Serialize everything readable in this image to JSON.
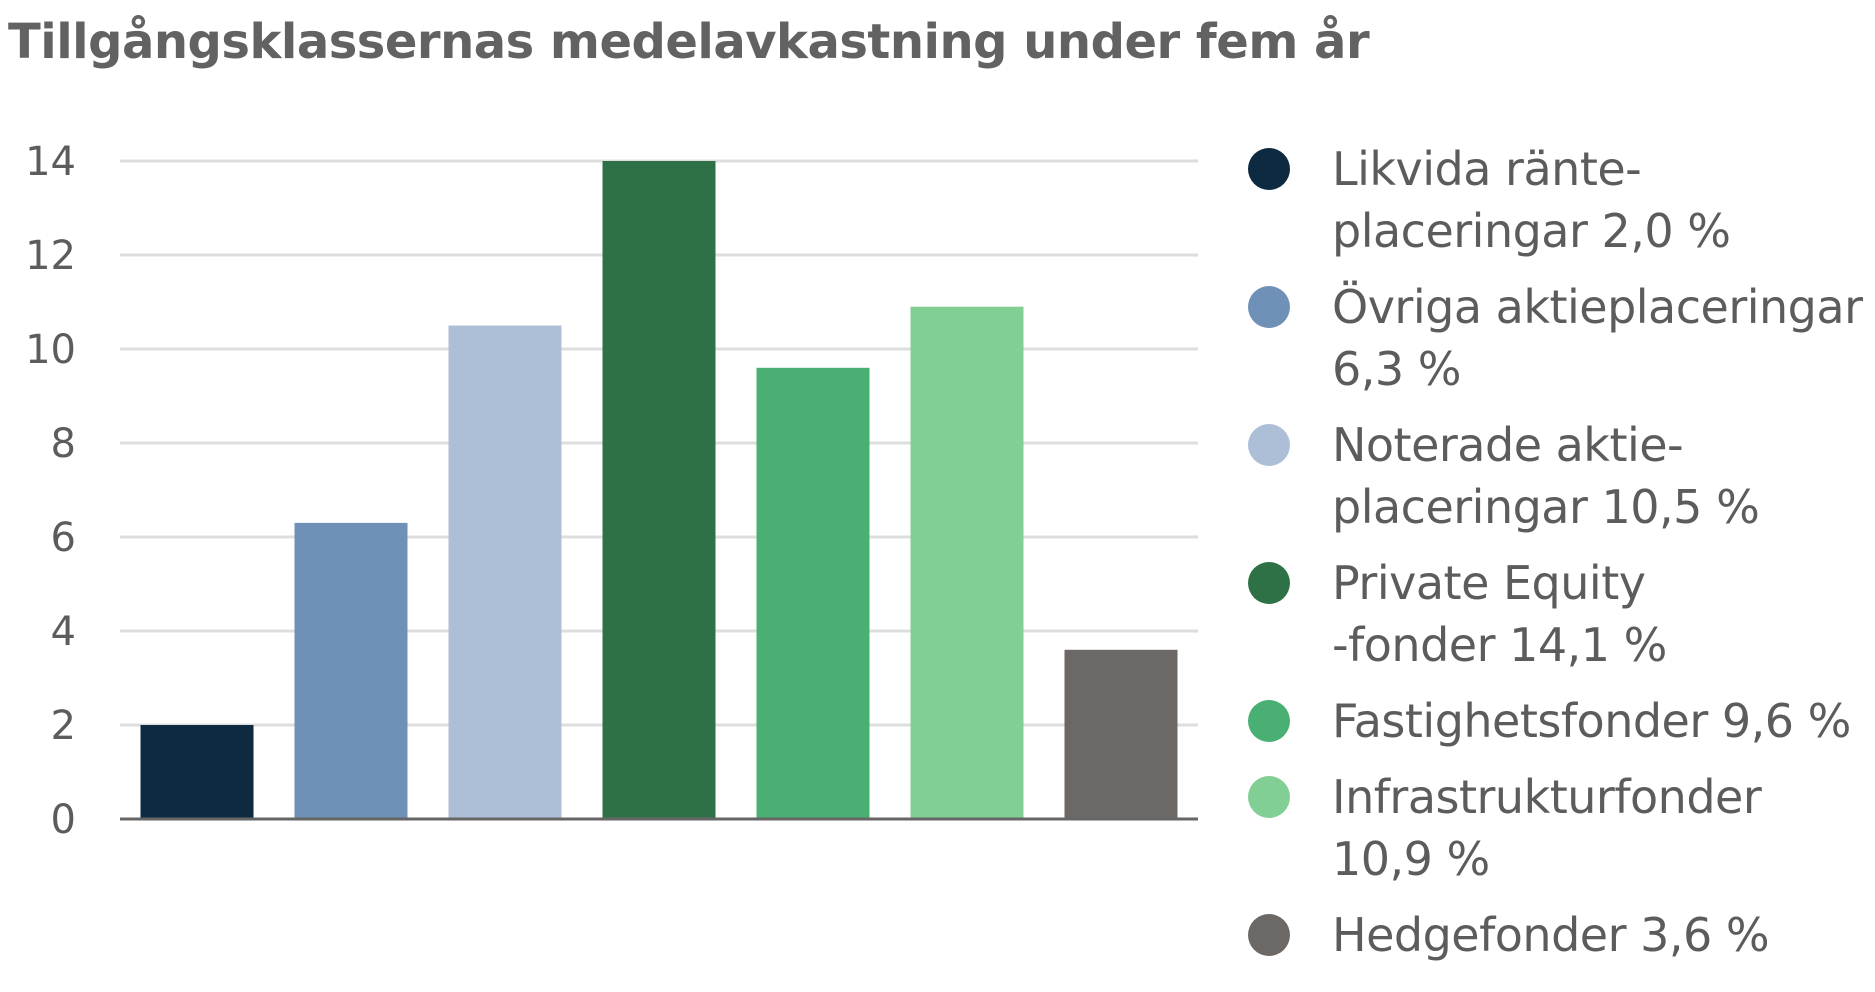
{
  "chart_data": {
    "type": "bar",
    "title": "Tillgångsklassernas medelavkastning under fem år",
    "xlabel": "",
    "ylabel": "",
    "ylim": [
      0,
      14
    ],
    "yticks": [
      0,
      2,
      4,
      6,
      8,
      10,
      12,
      14
    ],
    "grid": true,
    "legend_position": "right",
    "categories": [
      "Likvida ränte-\nplaceringar 2,0 %",
      "Övriga aktieplaceringar\n6,3 %",
      "Noterade aktie-\nplaceringar 10,5 %",
      "Private Equity\n-fonder 14,1 %",
      "Fastighetsfonder 9,6 %",
      "Infrastrukturfonder\n10,9 %",
      "Hedgefonder 3,6 %"
    ],
    "values": [
      2.0,
      6.3,
      10.5,
      14.1,
      9.6,
      10.9,
      3.6
    ],
    "colors": [
      "#0e2a40",
      "#7091b7",
      "#adbfd6",
      "#2f7146",
      "#4aaf72",
      "#82cf96",
      "#6b6866"
    ]
  }
}
